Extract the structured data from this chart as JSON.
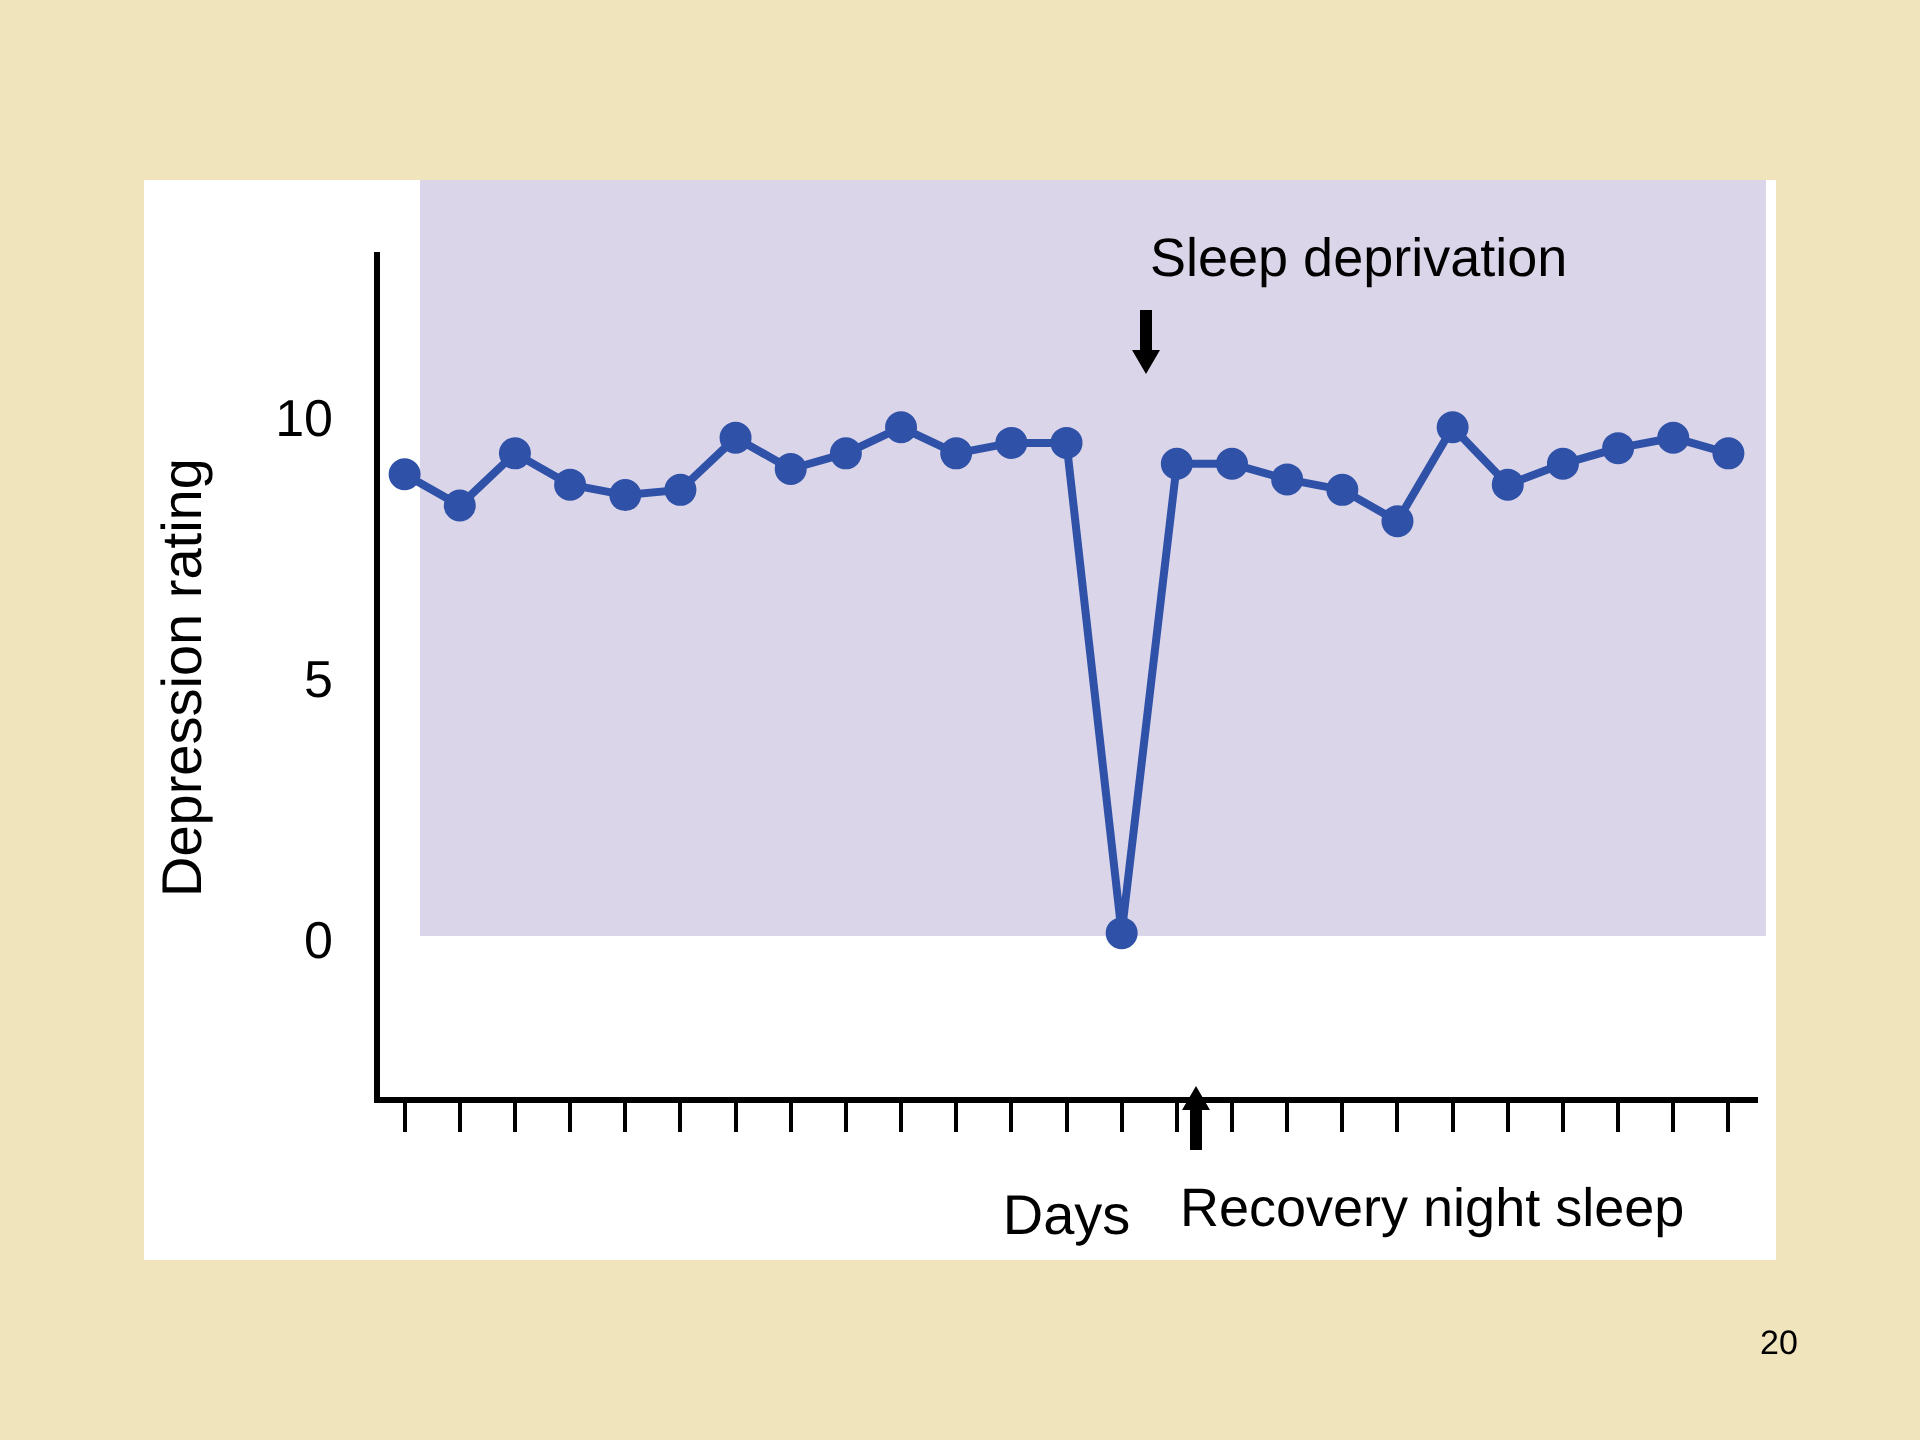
{
  "chart_data": {
    "type": "line",
    "xlabel": "Days",
    "ylabel": "Depression rating",
    "categories": [
      null,
      null,
      null,
      null,
      null,
      null,
      null,
      null,
      null,
      null,
      null,
      null,
      null,
      null,
      null,
      null,
      null,
      null,
      null,
      null,
      null,
      null,
      null,
      null,
      null
    ],
    "series": [
      {
        "color": "#2f52a8",
        "values": [
          9.0,
          8.4,
          9.4,
          8.8,
          8.6,
          8.7,
          9.7,
          9.1,
          9.4,
          9.9,
          9.4,
          9.6,
          9.6,
          0.2,
          9.2,
          9.2,
          8.9,
          8.7,
          8.1,
          9.9,
          8.8,
          9.2,
          9.5,
          9.7,
          9.4
        ]
      }
    ],
    "ylim": [
      -3,
      13.2
    ],
    "yticks": [
      0,
      5,
      10
    ],
    "grid": false,
    "legend": false,
    "marker": "circle",
    "line_style": "solid",
    "annotations": [
      "Sleep deprivation",
      "Recovery night sleep",
      "20"
    ]
  }
}
